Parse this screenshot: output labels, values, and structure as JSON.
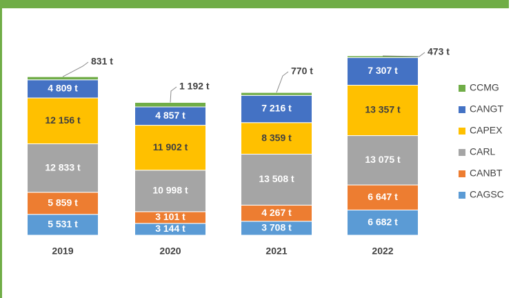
{
  "chart_data": {
    "type": "stacked_bar",
    "categories": [
      "2019",
      "2020",
      "2021",
      "2022"
    ],
    "series": [
      {
        "name": "CAGSC",
        "color": "#5b9bd5",
        "values": [
          5531,
          3144,
          3708,
          6682
        ],
        "value_labels": [
          "5 531 t",
          "3 144 t",
          "3 708 t",
          "6 682 t"
        ]
      },
      {
        "name": "CANBT",
        "color": "#ed7d31",
        "values": [
          5859,
          3101,
          4267,
          6647
        ],
        "value_labels": [
          "5 859 t",
          "3 101 t",
          "4 267 t",
          "6 647 t"
        ]
      },
      {
        "name": "CARL",
        "color": "#a5a5a5",
        "values": [
          12833,
          10998,
          13508,
          13075
        ],
        "value_labels": [
          "12 833 t",
          "10 998 t",
          "13 508 t",
          "13 075 t"
        ]
      },
      {
        "name": "CAPEX",
        "color": "#ffc000",
        "values": [
          12156,
          11902,
          8359,
          13357
        ],
        "value_labels": [
          "12 156 t",
          "11 902 t",
          "8 359 t",
          "13 357 t"
        ]
      },
      {
        "name": "CANGT",
        "color": "#4472c4",
        "values": [
          4809,
          4857,
          7216,
          7307
        ],
        "value_labels": [
          "4 809 t",
          "4 857 t",
          "7 216 t",
          "7 307 t"
        ]
      },
      {
        "name": "CCMG",
        "color": "#70ad47",
        "values": [
          831,
          1192,
          770,
          473
        ],
        "value_labels": [
          "831 t",
          "1 192 t",
          "770 t",
          "473 t"
        ]
      }
    ],
    "legend": "right"
  }
}
